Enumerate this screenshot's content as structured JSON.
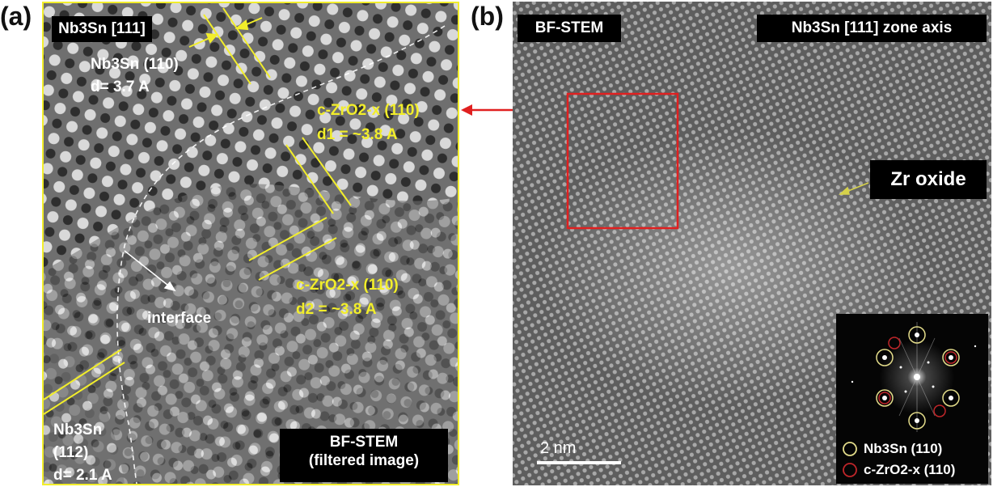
{
  "panel_a": {
    "letter": "(a)",
    "title": "Nb3Sn [111]",
    "top_label": {
      "line1": "Nb3Sn (110)",
      "line2": "d= 3.7 A"
    },
    "zro_label_1": {
      "line1": "c-ZrO2-x (110)",
      "line2": "d1 = ~3.8 A"
    },
    "zro_label_2": {
      "line1": "c-ZrO2-x (110)",
      "line2": "d2 = ~3.8 A"
    },
    "interface_label": "interface",
    "bottom_label": {
      "line1": "Nb3Sn",
      "line2": "(112)",
      "line3": "d= 2.1 A"
    },
    "method_label": {
      "line1": "BF-STEM",
      "line2": "(filtered image)"
    },
    "annotation_color": "#f2ee2a"
  },
  "panel_b": {
    "letter": "(b)",
    "method_label": "BF-STEM",
    "zone_label": "Nb3Sn [111] zone axis",
    "oxide_label": "Zr oxide",
    "scale_bar": "2 nm",
    "fft_legend": [
      {
        "label": "Nb3Sn (110)",
        "color": "#e3dc8a"
      },
      {
        "label": "c-ZrO2-x (110)",
        "color": "#c0262a"
      }
    ],
    "roi_color": "#e02020"
  }
}
